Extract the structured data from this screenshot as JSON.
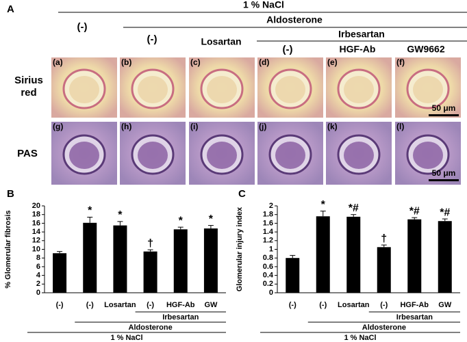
{
  "panel_labels": [
    "A",
    "B",
    "C"
  ],
  "header": {
    "nacl": "1 % NaCl",
    "control": "(-)",
    "aldosterone": "Aldosterone",
    "aldo_control": "(-)",
    "losartan": "Losartan",
    "irbesartan": "Irbesartan",
    "irb_control": "(-)",
    "hgf_ab": "HGF-Ab",
    "gw9662": "GW9662"
  },
  "row_labels": [
    "Sirius red",
    "PAS"
  ],
  "image_labels": [
    "(a)",
    "(b)",
    "(c)",
    "(d)",
    "(e)",
    "(f)",
    "(g)",
    "(h)",
    "(i)",
    "(j)",
    "(k)",
    "(l)"
  ],
  "scale_bars": [
    "50 μm",
    "50 μm"
  ],
  "chart_data": [
    {
      "type": "bar",
      "ylabel": "% Glomerular fibrosis",
      "color": "#000000",
      "categories": [
        "(-)",
        "(-)",
        "Losartan",
        "(-)",
        "HGF-Ab",
        "GW"
      ],
      "values": [
        9.1,
        16.1,
        15.5,
        9.5,
        14.6,
        14.8
      ],
      "errors": [
        0.4,
        1.3,
        0.9,
        0.4,
        0.5,
        0.7
      ],
      "annotations": [
        {
          "index": 1,
          "text": "*"
        },
        {
          "index": 2,
          "text": "*"
        },
        {
          "index": 3,
          "text": "†"
        },
        {
          "index": 4,
          "text": "*"
        },
        {
          "index": 5,
          "text": "*"
        }
      ],
      "groups": [
        {
          "label": "Irbesartan",
          "first": 3,
          "last": 5
        },
        {
          "label": "Aldosterone",
          "first": 1,
          "last": 5
        },
        {
          "label": "1 % NaCl",
          "first": 0,
          "last": 5
        }
      ],
      "ylim": [
        0,
        20
      ],
      "yticks": [
        0,
        2,
        4,
        6,
        8,
        10,
        12,
        14,
        16,
        18,
        20
      ]
    },
    {
      "type": "bar",
      "ylabel": "Glomerular injury index",
      "color": "#000000",
      "categories": [
        "(-)",
        "(-)",
        "Losartan",
        "(-)",
        "HGF-Ab",
        "GW"
      ],
      "values": [
        0.8,
        1.76,
        1.75,
        1.05,
        1.69,
        1.65
      ],
      "errors": [
        0.06,
        0.12,
        0.05,
        0.05,
        0.04,
        0.05
      ],
      "annotations": [
        {
          "index": 1,
          "text": "*"
        },
        {
          "index": 2,
          "text": "*#"
        },
        {
          "index": 3,
          "text": "†"
        },
        {
          "index": 4,
          "text": "*#"
        },
        {
          "index": 5,
          "text": "*#"
        }
      ],
      "groups": [
        {
          "label": "Irbesartan",
          "first": 3,
          "last": 5
        },
        {
          "label": "Aldosterone",
          "first": 1,
          "last": 5
        },
        {
          "label": "1 % NaCl",
          "first": 0,
          "last": 5
        }
      ],
      "ylim": [
        0,
        2
      ],
      "yticks": [
        0,
        0.2,
        0.4,
        0.6,
        0.8,
        1,
        1.2,
        1.4,
        1.6,
        1.8,
        2
      ]
    }
  ]
}
